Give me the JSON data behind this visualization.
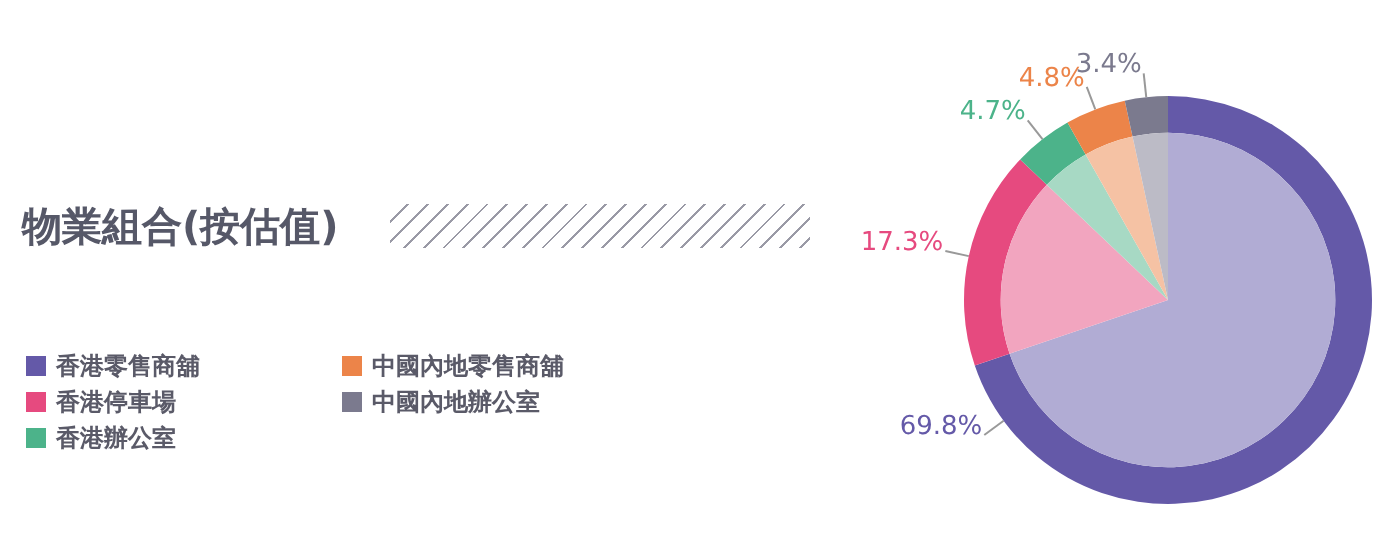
{
  "chart_data": {
    "type": "pie",
    "title": "物業組合(按估值)",
    "categories": [
      "香港零售商舖",
      "香港停車場",
      "香港辦公室",
      "中國內地零售商舖",
      "中國內地辦公室"
    ],
    "value_labels": [
      "69.8%",
      "17.3%",
      "4.7%",
      "4.8%",
      "3.4%"
    ],
    "series": [
      {
        "values": [
          69.8,
          17.3,
          4.7,
          4.8,
          3.4
        ],
        "colors": [
          "#6459a8",
          "#e64a7f",
          "#4cb38a",
          "#ec8449",
          "#7b7a8e"
        ]
      },
      {
        "values": [
          69.8,
          17.3,
          4.7,
          4.8,
          3.4
        ],
        "colors": [
          "#b1acd4",
          "#f2a5bf",
          "#a7d9c4",
          "#f5c2a4",
          "#bcbbc6"
        ]
      }
    ],
    "legend": "bottom left"
  }
}
